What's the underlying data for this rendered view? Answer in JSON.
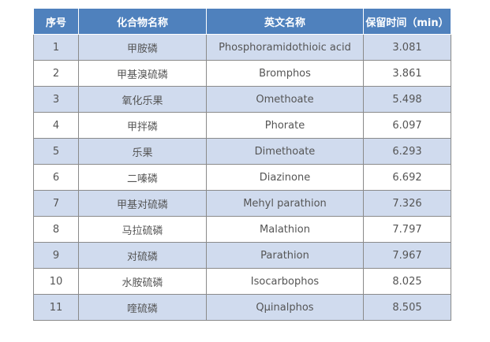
{
  "table": {
    "headers": [
      "序号",
      "化合物名称",
      "英文名称",
      "保留时间（min）"
    ],
    "rows": [
      [
        "1",
        "甲胺磷",
        "Phosphoramidothioic acid",
        "3.081"
      ],
      [
        "2",
        "甲基溴硫磷",
        "Bromphos",
        "3.861"
      ],
      [
        "3",
        "氧化乐果",
        "Omethoate",
        "5.498"
      ],
      [
        "4",
        "甲拌磷",
        "Phorate",
        "6.097"
      ],
      [
        "5",
        "乐果",
        "Dimethoate",
        "6.293"
      ],
      [
        "6",
        "二嗪磷",
        "Diazinone",
        "6.692"
      ],
      [
        "7",
        "甲基对硫磷",
        "Mehyl parathion",
        "7.326"
      ],
      [
        "8",
        "马拉硫磷",
        "Malathion",
        "7.797"
      ],
      [
        "9",
        "对硫磷",
        "Parathion",
        "7.967"
      ],
      [
        "10",
        "水胺硫磷",
        "Isocarbophos",
        "8.025"
      ],
      [
        "11",
        "喹硫磷",
        "Qμinalphos",
        "8.505"
      ]
    ]
  },
  "colors": {
    "header_bg": "#4f81bd",
    "header_text": "#ffffff",
    "stripe_bg": "#d0dbee",
    "body_text": "#555555"
  }
}
